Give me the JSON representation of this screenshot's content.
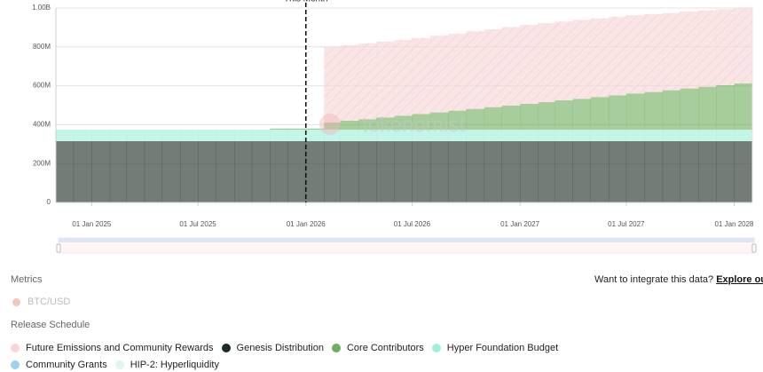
{
  "chart_data": {
    "type": "stacked-area",
    "annotations": [
      {
        "text": "This Month",
        "x": "2026-01-01"
      }
    ],
    "watermark": "tokenomist",
    "x": [
      "2024-11-01",
      "2024-12-01",
      "2025-01-01",
      "2025-02-01",
      "2025-03-01",
      "2025-04-01",
      "2025-05-01",
      "2025-06-01",
      "2025-07-01",
      "2025-08-01",
      "2025-09-01",
      "2025-10-01",
      "2025-11-01",
      "2025-12-01",
      "2026-01-01",
      "2026-02-01",
      "2026-03-01",
      "2026-04-01",
      "2026-05-01",
      "2026-06-01",
      "2026-07-01",
      "2026-08-01",
      "2026-09-01",
      "2026-10-01",
      "2026-11-01",
      "2026-12-01",
      "2027-01-01",
      "2027-02-01",
      "2027-03-01",
      "2027-04-01",
      "2027-05-01",
      "2027-06-01",
      "2027-07-01",
      "2027-08-01",
      "2027-09-01",
      "2027-10-01",
      "2027-11-01",
      "2027-12-01",
      "2028-01-01"
    ],
    "xlim": [
      "2024-11-01",
      "2028-02-01"
    ],
    "xticks": [
      {
        "value": "2025-01-01",
        "label": "01 Jan 2025"
      },
      {
        "value": "2025-07-01",
        "label": "01 Jul 2025"
      },
      {
        "value": "2026-01-01",
        "label": "01 Jan 2026"
      },
      {
        "value": "2026-07-01",
        "label": "01 Jul 2026"
      },
      {
        "value": "2027-01-01",
        "label": "01 Jan 2027"
      },
      {
        "value": "2027-07-01",
        "label": "01 Jul 2027"
      },
      {
        "value": "2028-01-01",
        "label": "01 Jan 2028"
      }
    ],
    "ylim": [
      0,
      1000000000
    ],
    "yticks": [
      0,
      {
        "value": 200000000,
        "label": "200M"
      },
      {
        "value": 400000000,
        "label": "400M"
      },
      {
        "value": 600000000,
        "label": "600M"
      },
      {
        "value": 800000000,
        "label": "800M"
      },
      {
        "value": 1000000000,
        "label": "1.00B"
      }
    ],
    "grid": true,
    "series": [
      {
        "name": "Future Emissions and Community Rewards",
        "color": "#f7d5d6",
        "values": [
          0,
          0,
          0,
          0,
          0,
          0,
          0,
          0,
          0,
          0,
          0,
          0,
          0,
          0,
          0,
          389000000,
          389000000,
          390000000,
          390000000,
          390000000,
          390000000,
          394000000,
          396000000,
          399000000,
          401000000,
          404000000,
          406000000,
          406000000,
          405000000,
          406000000,
          405000000,
          404000000,
          403000000,
          401000000,
          398000000,
          396000000,
          393000000,
          391000000,
          388000000
        ]
      },
      {
        "name": "Genesis Distribution",
        "color": "#1e2b24",
        "values": [
          315000000,
          315000000,
          315000000,
          315000000,
          315000000,
          315000000,
          315000000,
          315000000,
          315000000,
          315000000,
          315000000,
          315000000,
          315000000,
          315000000,
          315000000,
          315000000,
          315000000,
          315000000,
          315000000,
          315000000,
          315000000,
          315000000,
          315000000,
          315000000,
          315000000,
          315000000,
          315000000,
          315000000,
          315000000,
          315000000,
          315000000,
          315000000,
          315000000,
          315000000,
          315000000,
          315000000,
          315000000,
          315000000,
          315000000
        ]
      },
      {
        "name": "Core Contributors",
        "color": "#6fae5e",
        "values": [
          0,
          0,
          0,
          0,
          0,
          0,
          0,
          0,
          0,
          0,
          0,
          0,
          6000000,
          6000000,
          6000000,
          37000000,
          46000000,
          54000000,
          63000000,
          72000000,
          81000000,
          89000000,
          98000000,
          107000000,
          116000000,
          124000000,
          133000000,
          142000000,
          151000000,
          159000000,
          168000000,
          177000000,
          186000000,
          194000000,
          203000000,
          212000000,
          221000000,
          229000000,
          238000000
        ]
      },
      {
        "name": "Hyper Foundation Budget",
        "color": "#9ef0da",
        "values": [
          59000000,
          59000000,
          59000000,
          59000000,
          59000000,
          59000000,
          59000000,
          59000000,
          59000000,
          59000000,
          59000000,
          59000000,
          59000000,
          59000000,
          59000000,
          59000000,
          59000000,
          59000000,
          59000000,
          59000000,
          59000000,
          59000000,
          59000000,
          59000000,
          59000000,
          59000000,
          59000000,
          59000000,
          59000000,
          59000000,
          59000000,
          59000000,
          59000000,
          59000000,
          59000000,
          59000000,
          59000000,
          59000000,
          59000000
        ]
      },
      {
        "name": "Community Grants",
        "color": "#9ed0ef",
        "values": [
          0,
          0,
          0,
          0,
          0,
          0,
          0,
          0,
          0,
          0,
          0,
          0,
          0,
          0,
          0,
          0,
          0,
          0,
          0,
          0,
          0,
          0,
          0,
          0,
          0,
          0,
          0,
          0,
          0,
          0,
          0,
          0,
          0,
          0,
          0,
          0,
          0,
          0,
          0
        ]
      },
      {
        "name": "HIP-2: Hyperliquidity",
        "color": "#dff6ef",
        "values": [
          0,
          0,
          0,
          0,
          0,
          0,
          0,
          0,
          0,
          0,
          0,
          0,
          0,
          0,
          0,
          0,
          0,
          0,
          0,
          0,
          0,
          0,
          0,
          0,
          0,
          0,
          0,
          0,
          0,
          0,
          0,
          0,
          0,
          0,
          0,
          0,
          0,
          0,
          0
        ]
      }
    ]
  },
  "page": {
    "metrics_label": "Metrics",
    "metrics": [
      "BTC/USD"
    ],
    "integrate_text": "Want to integrate this data?",
    "integrate_link": "Explore our API",
    "release_schedule_label": "Release Schedule"
  }
}
